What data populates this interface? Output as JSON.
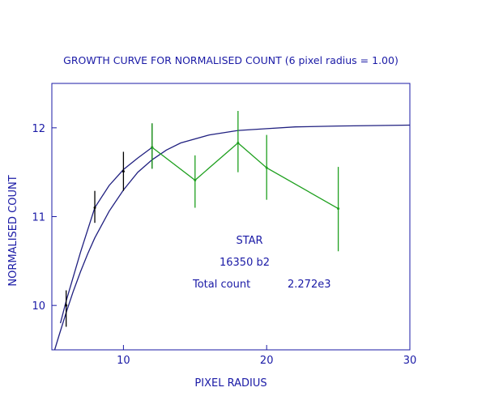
{
  "chart_data": {
    "type": "line",
    "title": "GROWTH CURVE FOR NORMALISED COUNT (6 pixel radius =  1.00)",
    "xlabel": "PIXEL RADIUS",
    "ylabel": "NORMALISED COUNT",
    "xlim": [
      5,
      30
    ],
    "ylim": [
      9.5,
      12.5
    ],
    "x_ticks": [
      10,
      20,
      30
    ],
    "y_ticks": [
      10,
      11,
      12
    ],
    "grid": false,
    "series": [
      {
        "color": "#202080",
        "style": "line",
        "x": [
          5.2,
          5.5,
          6,
          6.5,
          7,
          7.5,
          8,
          9,
          10,
          11,
          12,
          13,
          14,
          16,
          18,
          20,
          22,
          25,
          30
        ],
        "y": [
          9.5,
          9.66,
          9.92,
          10.16,
          10.38,
          10.58,
          10.76,
          11.06,
          11.3,
          11.5,
          11.64,
          11.75,
          11.83,
          11.92,
          11.97,
          11.99,
          12.01,
          12.02,
          12.03
        ]
      },
      {
        "color": "#202080",
        "style": "line",
        "x": [
          5.6,
          6,
          7,
          8,
          9,
          10,
          11,
          12
        ],
        "y": [
          9.8,
          10.05,
          10.6,
          11.1,
          11.35,
          11.53,
          11.66,
          11.78
        ]
      },
      {
        "color": "#000000",
        "style": "errorbar",
        "x": [
          6,
          8,
          10,
          12
        ],
        "y": [
          10.0,
          11.1,
          11.51,
          11.78
        ],
        "yerr_low": [
          9.76,
          10.93,
          11.29,
          11.54
        ],
        "yerr_high": [
          10.17,
          11.29,
          11.73,
          12.05
        ]
      },
      {
        "color": "#1fa01f",
        "style": "line+errorbar",
        "x": [
          12,
          15,
          18,
          20,
          25
        ],
        "y": [
          11.78,
          11.41,
          11.83,
          11.55,
          11.09
        ],
        "yerr_low": [
          11.54,
          11.1,
          11.5,
          11.19,
          10.61
        ],
        "yerr_high": [
          12.05,
          11.69,
          12.19,
          11.92,
          11.56
        ]
      }
    ],
    "annotations": [
      {
        "text": "STAR"
      },
      {
        "text": "16350 b2"
      },
      {
        "text": "Total count"
      },
      {
        "text": "2.272e3"
      }
    ]
  }
}
